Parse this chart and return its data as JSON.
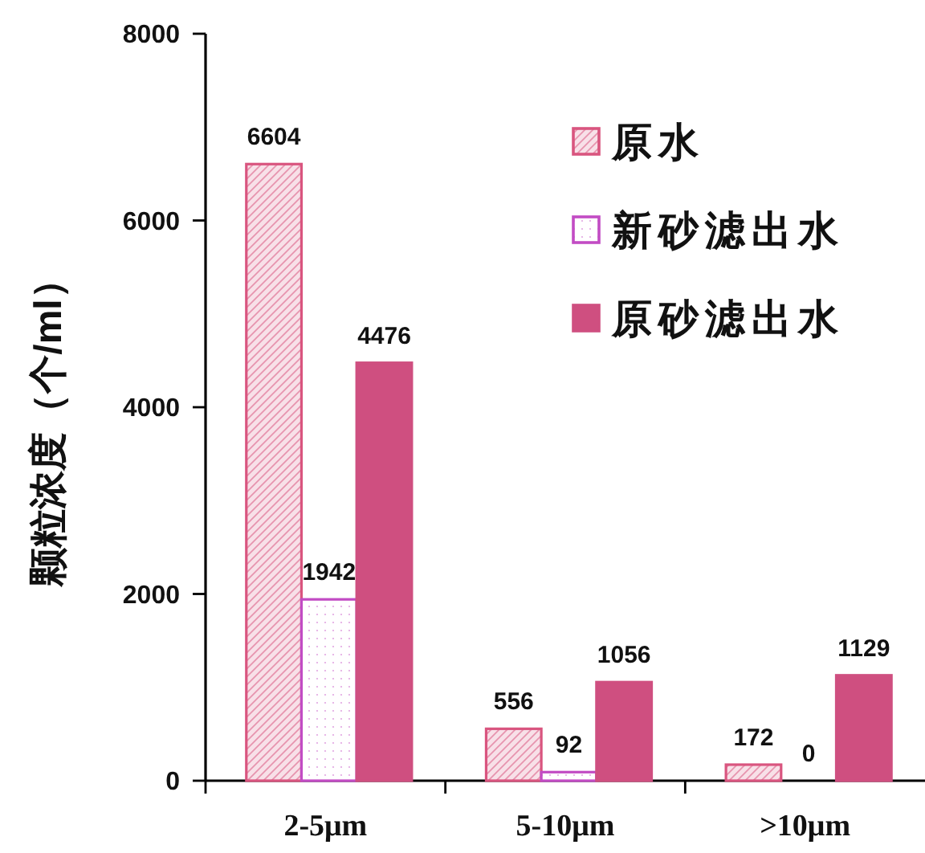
{
  "chart_data": {
    "type": "bar",
    "ylabel": "颗粒浓度（个/ml）",
    "categories": [
      "2-5μm",
      "5-10μm",
      ">10μm"
    ],
    "series": [
      {
        "name": "原水",
        "color": "#d9557f",
        "values": [
          6604,
          556,
          172
        ]
      },
      {
        "name": "新砂滤出水",
        "color": "#c24cc4",
        "values": [
          1942,
          92,
          0
        ]
      },
      {
        "name": "原砂滤出水",
        "color": "#cf4f80",
        "values": [
          4476,
          1056,
          1129
        ]
      }
    ],
    "ylim": [
      0,
      8000
    ],
    "yticks": [
      0,
      2000,
      4000,
      6000,
      8000
    ],
    "data_labels": true,
    "legend": "top right"
  }
}
